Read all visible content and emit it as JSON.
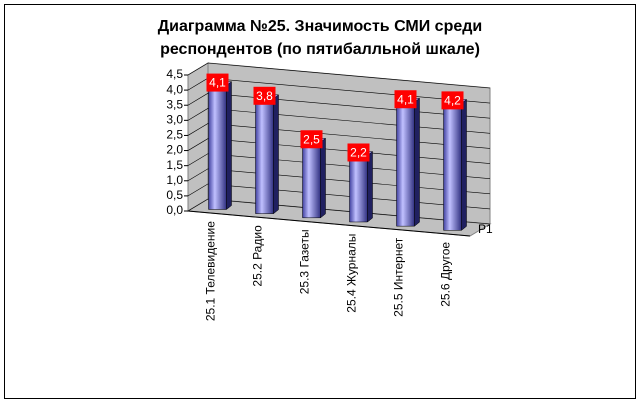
{
  "chart_data": {
    "type": "bar3d",
    "title_lines": [
      "Диаграмма №25. Значимость СМИ среди",
      "респондентов (по пятибалльной шкале)"
    ],
    "categories": [
      "25.1 Телевидение",
      "25.2 Радио",
      "25.3 Газеты",
      "25.4 Журналы",
      "25.5 Интернет",
      "25.6 Другое"
    ],
    "series": [
      {
        "name": "P1",
        "color": "#8080ff",
        "values": [
          4.1,
          3.8,
          2.5,
          2.2,
          4.1,
          4.2
        ],
        "value_labels": [
          "4,1",
          "3,8",
          "2,5",
          "2,2",
          "4,1",
          "4,2"
        ]
      }
    ],
    "ylim": [
      0,
      4.5
    ],
    "yticks": [
      {
        "value": 0,
        "label": "0,0"
      },
      {
        "value": 0.5,
        "label": "0,5"
      },
      {
        "value": 1,
        "label": "1,0"
      },
      {
        "value": 1.5,
        "label": "1,5"
      },
      {
        "value": 2,
        "label": "2,0"
      },
      {
        "value": 2.5,
        "label": "2,5"
      },
      {
        "value": 3,
        "label": "3,0"
      },
      {
        "value": 3.5,
        "label": "3,5"
      },
      {
        "value": 4,
        "label": "4,0"
      },
      {
        "value": 4.5,
        "label": "4,5"
      }
    ],
    "grid": true
  }
}
